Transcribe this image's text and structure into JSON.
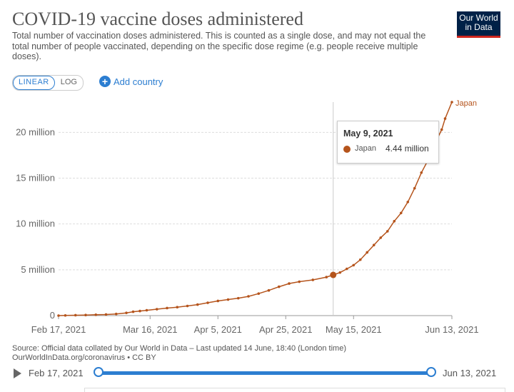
{
  "header": {
    "title": "COVID-19 vaccine doses administered",
    "subtitle": "Total number of vaccination doses administered. This is counted as a single dose, and may not equal the total number of people vaccinated, depending on the specific dose regime (e.g. people receive multiple doses).",
    "logo": [
      "Our World",
      "in Data"
    ]
  },
  "controls": {
    "linear_label": "LINEAR",
    "log_label": "LOG",
    "add_country_label": "Add country"
  },
  "tooltip": {
    "date": "May 9, 2021",
    "series": "Japan",
    "value": "4.44 million"
  },
  "footer": {
    "source_line1": "Source: Official data collated by Our World in Data – Last updated 14 June, 18:40 (London time)",
    "source_line2": "OurWorldInData.org/coronavirus • CC BY"
  },
  "timeline": {
    "start": "Feb 17, 2021",
    "end": "Jun 13, 2021"
  },
  "chart_data": {
    "type": "line",
    "ylabel": "",
    "y_tick_labels": [
      "0",
      "5 million",
      "10 million",
      "15 million",
      "20 million"
    ],
    "y_ticks": [
      0,
      5000000,
      10000000,
      15000000,
      20000000
    ],
    "ylim": [
      0,
      23300000
    ],
    "x_tick_labels": [
      "Feb 17, 2021",
      "Mar 16, 2021",
      "Apr 5, 2021",
      "Apr 25, 2021",
      "May 15, 2021",
      "Jun 13, 2021"
    ],
    "x_ticks": [
      "2021-02-17",
      "2021-03-16",
      "2021-04-05",
      "2021-04-25",
      "2021-05-15",
      "2021-06-13"
    ],
    "xlim": [
      "2021-02-17",
      "2021-06-13"
    ],
    "grid": "horizontal dashed",
    "line_color": "#b5541c",
    "series": [
      {
        "name": "Japan",
        "x": [
          "2021-02-17",
          "2021-02-19",
          "2021-02-22",
          "2021-02-25",
          "2021-02-28",
          "2021-03-03",
          "2021-03-06",
          "2021-03-09",
          "2021-03-11",
          "2021-03-13",
          "2021-03-15",
          "2021-03-18",
          "2021-03-21",
          "2021-03-24",
          "2021-03-27",
          "2021-03-30",
          "2021-04-02",
          "2021-04-05",
          "2021-04-08",
          "2021-04-11",
          "2021-04-14",
          "2021-04-17",
          "2021-04-20",
          "2021-04-23",
          "2021-04-26",
          "2021-04-29",
          "2021-05-03",
          "2021-05-07",
          "2021-05-09",
          "2021-05-11",
          "2021-05-13",
          "2021-05-15",
          "2021-05-17",
          "2021-05-19",
          "2021-05-21",
          "2021-05-23",
          "2021-05-25",
          "2021-05-27",
          "2021-05-29",
          "2021-05-31",
          "2021-06-02",
          "2021-06-04",
          "2021-06-06",
          "2021-06-08",
          "2021-06-10",
          "2021-06-11",
          "2021-06-13"
        ],
        "y": [
          0,
          20000,
          40000,
          60000,
          90000,
          120000,
          180000,
          300000,
          420000,
          500000,
          580000,
          700000,
          820000,
          920000,
          1050000,
          1200000,
          1400000,
          1600000,
          1750000,
          1900000,
          2100000,
          2400000,
          2750000,
          3150000,
          3500000,
          3700000,
          3900000,
          4200000,
          4440000,
          4700000,
          5100000,
          5500000,
          6100000,
          6900000,
          7700000,
          8500000,
          9200000,
          10300000,
          11200000,
          12400000,
          13900000,
          15600000,
          17000000,
          18800000,
          20300000,
          21500000,
          23300000
        ]
      }
    ],
    "highlight": {
      "x": "2021-05-09",
      "y": 4440000
    }
  }
}
